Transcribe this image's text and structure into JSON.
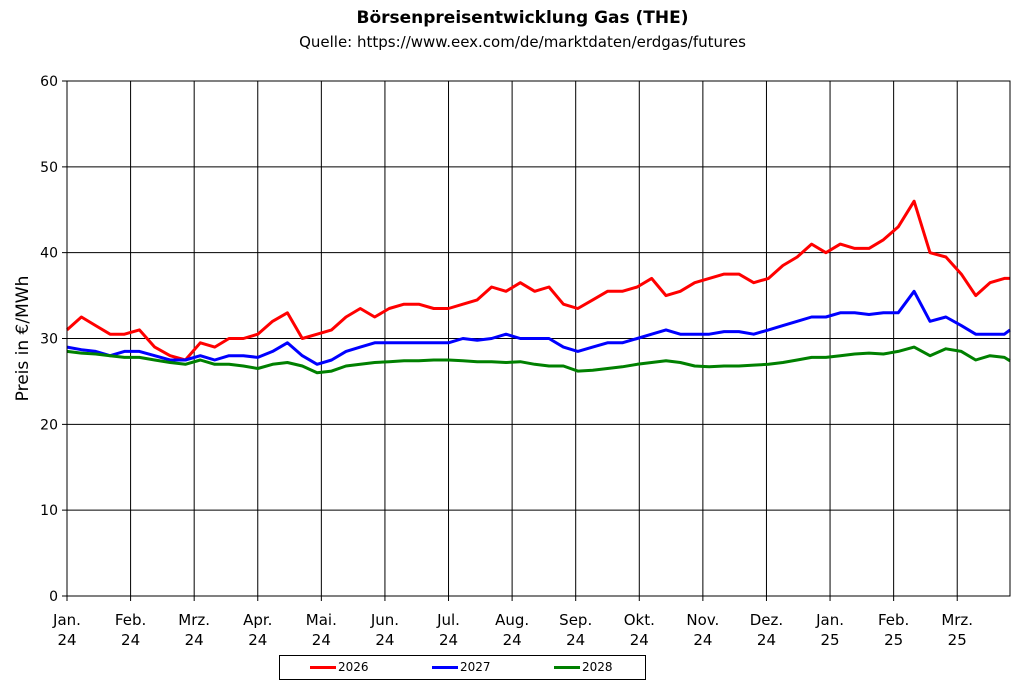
{
  "chart_data": {
    "type": "line",
    "title": "Börsenpreisentwicklung Gas (THE)",
    "subtitle": "Quelle: https://www.eex.com/de/marktdaten/erdgas/futures",
    "ylabel": "Preis in €/MWh",
    "xlabel": "",
    "ylim": [
      0,
      60
    ],
    "yticks": [
      0,
      10,
      20,
      30,
      40,
      50,
      60
    ],
    "xticks": [
      {
        "line1": "Jan.",
        "line2": "24"
      },
      {
        "line1": "Feb.",
        "line2": "24"
      },
      {
        "line1": "Mrz.",
        "line2": "24"
      },
      {
        "line1": "Apr.",
        "line2": "24"
      },
      {
        "line1": "Mai.",
        "line2": "24"
      },
      {
        "line1": "Jun.",
        "line2": "24"
      },
      {
        "line1": "Jul.",
        "line2": "24"
      },
      {
        "line1": "Aug.",
        "line2": "24"
      },
      {
        "line1": "Sep.",
        "line2": "24"
      },
      {
        "line1": "Okt.",
        "line2": "24"
      },
      {
        "line1": "Nov.",
        "line2": "24"
      },
      {
        "line1": "Dez.",
        "line2": "24"
      },
      {
        "line1": "Jan.",
        "line2": "25"
      },
      {
        "line1": "Feb.",
        "line2": "25"
      },
      {
        "line1": "Mrz.",
        "line2": "25"
      }
    ],
    "x": [
      "2024-01-01",
      "2024-01-08",
      "2024-01-15",
      "2024-01-22",
      "2024-01-29",
      "2024-02-05",
      "2024-02-12",
      "2024-02-19",
      "2024-02-26",
      "2024-03-04",
      "2024-03-11",
      "2024-03-18",
      "2024-03-25",
      "2024-04-01",
      "2024-04-08",
      "2024-04-15",
      "2024-04-22",
      "2024-04-29",
      "2024-05-06",
      "2024-05-13",
      "2024-05-20",
      "2024-05-27",
      "2024-06-03",
      "2024-06-10",
      "2024-06-17",
      "2024-06-24",
      "2024-07-01",
      "2024-07-08",
      "2024-07-15",
      "2024-07-22",
      "2024-07-29",
      "2024-08-05",
      "2024-08-12",
      "2024-08-19",
      "2024-08-26",
      "2024-09-02",
      "2024-09-09",
      "2024-09-16",
      "2024-09-23",
      "2024-09-30",
      "2024-10-07",
      "2024-10-14",
      "2024-10-21",
      "2024-10-28",
      "2024-11-04",
      "2024-11-11",
      "2024-11-18",
      "2024-11-25",
      "2024-12-02",
      "2024-12-09",
      "2024-12-16",
      "2024-12-23",
      "2024-12-30",
      "2025-01-06",
      "2025-01-13",
      "2025-01-20",
      "2025-01-27",
      "2025-02-03",
      "2025-02-10",
      "2025-02-17",
      "2025-02-24",
      "2025-03-03",
      "2025-03-10",
      "2025-03-17",
      "2025-03-24",
      "2025-03-31"
    ],
    "series": [
      {
        "name": "2026",
        "color": "#ff0000",
        "values": [
          31.0,
          32.5,
          31.5,
          30.5,
          30.5,
          31.0,
          29.0,
          28.0,
          27.5,
          29.5,
          29.0,
          30.0,
          30.0,
          30.5,
          32.0,
          33.0,
          30.0,
          30.5,
          31.0,
          32.5,
          33.5,
          32.5,
          33.5,
          34.0,
          34.0,
          33.5,
          33.5,
          34.0,
          34.5,
          36.0,
          35.5,
          36.5,
          35.5,
          36.0,
          34.0,
          33.5,
          34.5,
          35.5,
          35.5,
          36.0,
          37.0,
          35.0,
          35.5,
          36.5,
          37.0,
          37.5,
          37.5,
          36.5,
          37.0,
          38.5,
          39.5,
          41.0,
          40.0,
          41.0,
          40.5,
          40.5,
          41.5,
          43.0,
          46.0,
          40.0,
          39.5,
          37.5,
          35.0,
          36.5,
          37.0,
          37.0
        ]
      },
      {
        "name": "2027",
        "color": "#0000ff",
        "values": [
          29.0,
          28.7,
          28.5,
          28.0,
          28.5,
          28.5,
          28.0,
          27.5,
          27.5,
          28.0,
          27.5,
          28.0,
          28.0,
          27.8,
          28.5,
          29.5,
          28.0,
          27.0,
          27.5,
          28.5,
          29.0,
          29.5,
          29.5,
          29.5,
          29.5,
          29.5,
          29.5,
          30.0,
          29.8,
          30.0,
          30.5,
          30.0,
          30.0,
          30.0,
          29.0,
          28.5,
          29.0,
          29.5,
          29.5,
          30.0,
          30.5,
          31.0,
          30.5,
          30.5,
          30.5,
          30.8,
          30.8,
          30.5,
          31.0,
          31.5,
          32.0,
          32.5,
          32.5,
          33.0,
          33.0,
          32.8,
          33.0,
          33.0,
          35.5,
          32.0,
          32.5,
          31.5,
          30.5,
          30.5,
          30.5,
          31.0
        ]
      },
      {
        "name": "2028",
        "color": "#008000",
        "values": [
          28.5,
          28.3,
          28.2,
          28.0,
          27.8,
          27.8,
          27.5,
          27.2,
          27.0,
          27.5,
          27.0,
          27.0,
          26.8,
          26.5,
          27.0,
          27.2,
          26.8,
          26.0,
          26.2,
          26.8,
          27.0,
          27.2,
          27.3,
          27.4,
          27.4,
          27.5,
          27.5,
          27.4,
          27.3,
          27.3,
          27.2,
          27.3,
          27.0,
          26.8,
          26.8,
          26.2,
          26.3,
          26.5,
          26.7,
          27.0,
          27.2,
          27.4,
          27.2,
          26.8,
          26.7,
          26.8,
          26.8,
          26.9,
          27.0,
          27.2,
          27.5,
          27.8,
          27.8,
          28.0,
          28.2,
          28.3,
          28.2,
          28.5,
          29.0,
          28.0,
          28.8,
          28.5,
          27.5,
          28.0,
          27.8,
          27.4
        ]
      }
    ],
    "grid": true,
    "legend": "bottom"
  }
}
